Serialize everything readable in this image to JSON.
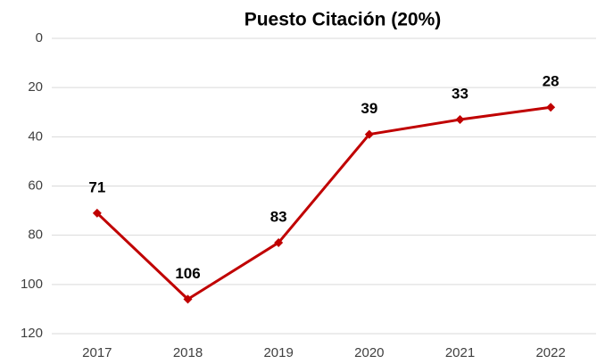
{
  "chart_data": {
    "type": "line",
    "title": "Puesto Citación (20%)",
    "categories": [
      "2017",
      "2018",
      "2019",
      "2020",
      "2021",
      "2022"
    ],
    "series": [
      {
        "name": "Puesto Citación",
        "color": "#c00000",
        "values": [
          71,
          106,
          83,
          39,
          33,
          28
        ]
      }
    ],
    "ylim": [
      0,
      120
    ],
    "yticks": [
      0,
      20,
      40,
      60,
      80,
      100,
      120
    ],
    "y_reversed": true,
    "grid": true,
    "marker": "diamond",
    "legend": false
  }
}
